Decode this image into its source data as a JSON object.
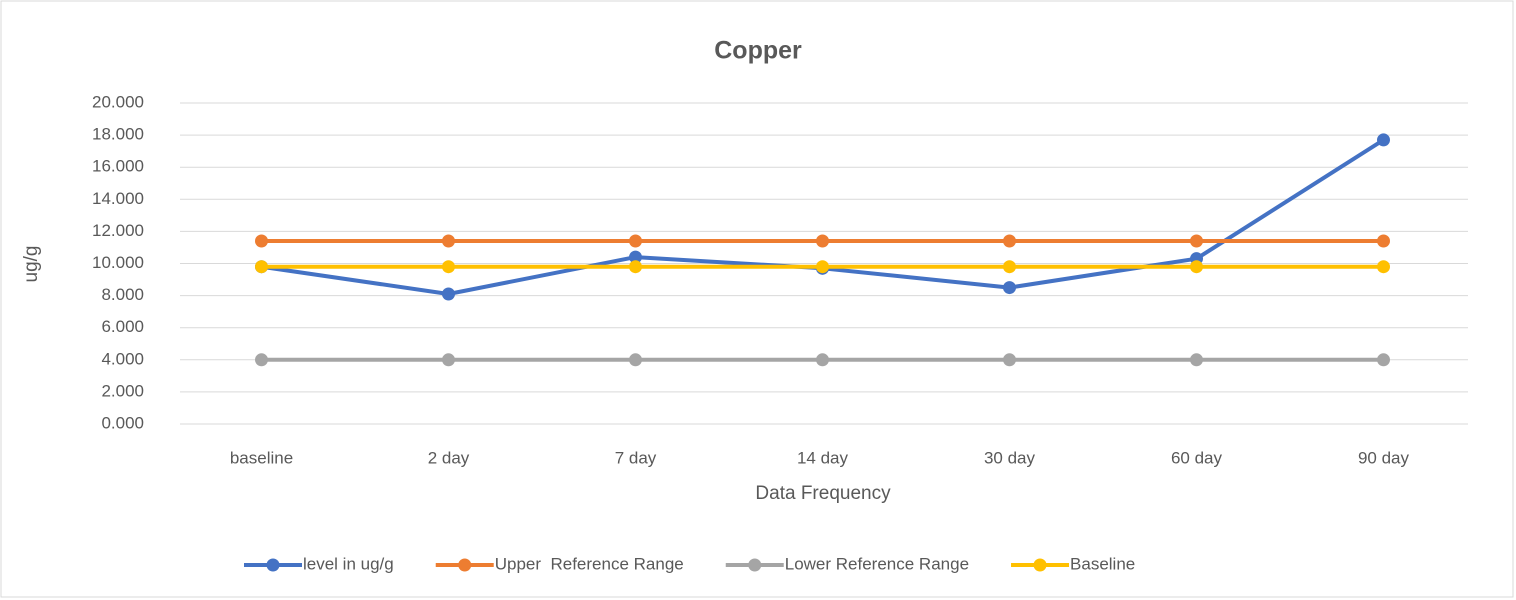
{
  "chart_data": {
    "type": "line",
    "title": "Copper",
    "y_label": "ug/g",
    "x_label": "Data Frequency",
    "categories": [
      "baseline",
      "2 day",
      "7 day",
      "14 day",
      "30 day",
      "60 day",
      "90 day"
    ],
    "series": [
      {
        "name": "level in ug/g",
        "color": "#4472c4",
        "values": [
          9.8,
          8.1,
          10.4,
          9.7,
          8.5,
          10.3,
          17.7
        ]
      },
      {
        "name": "Upper  Reference Range",
        "color": "#ed7d31",
        "values": [
          11.4,
          11.4,
          11.4,
          11.4,
          11.4,
          11.4,
          11.4
        ]
      },
      {
        "name": "Lower Reference Range",
        "color": "#a5a5a5",
        "values": [
          4.0,
          4.0,
          4.0,
          4.0,
          4.0,
          4.0,
          4.0
        ]
      },
      {
        "name": "Baseline",
        "color": "#ffc000",
        "values": [
          9.8,
          9.8,
          9.8,
          9.8,
          9.8,
          9.8,
          9.8
        ]
      }
    ],
    "ylim": [
      0,
      20
    ],
    "yticks": [
      {
        "value": 0,
        "label": "0.000"
      },
      {
        "value": 2,
        "label": "2.000"
      },
      {
        "value": 4,
        "label": "4.000"
      },
      {
        "value": 6,
        "label": "6.000"
      },
      {
        "value": 8,
        "label": "8.000"
      },
      {
        "value": 10,
        "label": "10.000"
      },
      {
        "value": 12,
        "label": "12.000"
      },
      {
        "value": 14,
        "label": "14.000"
      },
      {
        "value": 16,
        "label": "16.000"
      },
      {
        "value": 18,
        "label": "18.000"
      },
      {
        "value": 20,
        "label": "20.000"
      }
    ],
    "grid": true,
    "legend": "bottom"
  }
}
